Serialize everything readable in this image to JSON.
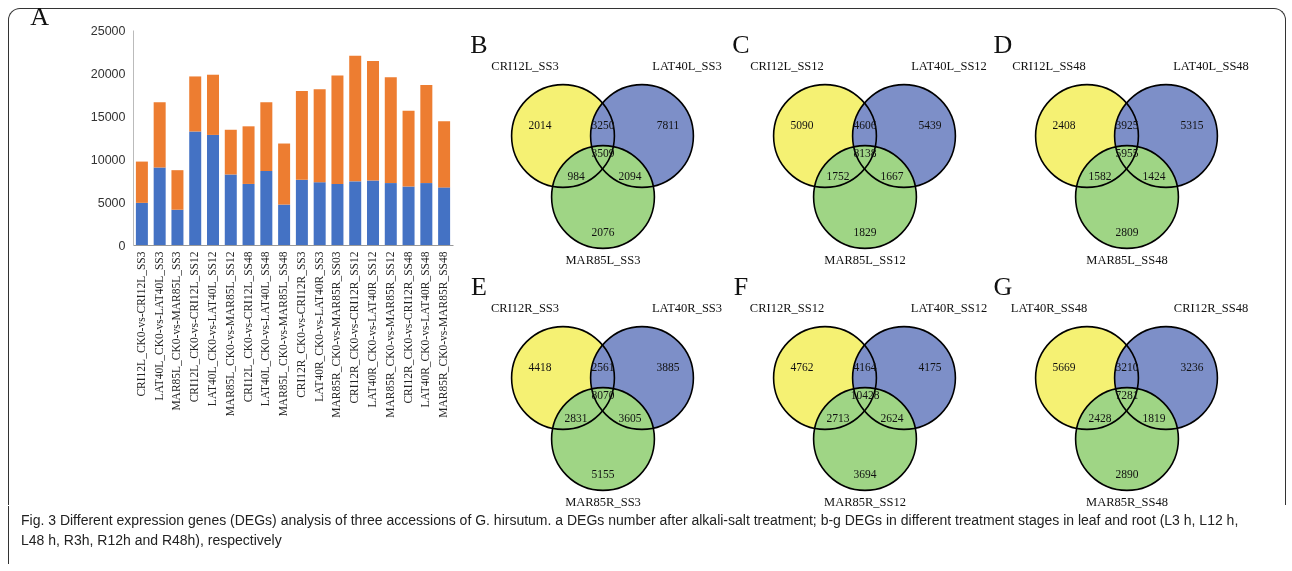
{
  "chart_data": [
    {
      "type": "bar",
      "title": "A",
      "stacked": true,
      "categories": [
        "CRI12L_CK0-vs-CRI12L_SS3",
        "LAT40L_CK0-vs-LAT40L_SS3",
        "MAR85L_CK0-vs-MAR85L_SS3",
        "CRI12L_CK0-vs-CRI12L_SS12",
        "LAT40L_CK0-vs-LAT40L_SS12",
        "MAR85L_CK0-vs-MAR85L_SS12",
        "CRI12L_CK0-vs-CRI12L_SS48",
        "LAT40L_CK0-vs-LAT40L_SS48",
        "MAR85L_CK0-vs-MAR85L_SS48",
        "CRI12R_CK0-vs-CRI12R_SS3",
        "LAT40R_CK0-vs-LAT40R_SS3",
        "MAR85R_CK0-vs-MAR85R_SS03",
        "CRI12R_CK0-vs-CRI12R_SS12",
        "LAT40R_CK0-vs-LAT40R_SS12",
        "MAR85R_CK0-vs-MAR85R_SS12",
        "CRI12R_CK0-vs-CRI12R_SS48",
        "LAT40R_CK0-vs-LAT40R_SS48",
        "MAR85R_CK0-vs-MAR85R_SS48"
      ],
      "series": [
        {
          "color": "#4472c4",
          "values": [
            4900,
            9000,
            4100,
            13200,
            12800,
            8200,
            7100,
            8600,
            4700,
            7600,
            7300,
            7100,
            7400,
            7500,
            7200,
            6800,
            7200,
            6700
          ]
        },
        {
          "color": "#ed7d31",
          "values": [
            4800,
            7600,
            4600,
            6400,
            7000,
            5200,
            6700,
            8000,
            7100,
            10300,
            10800,
            12600,
            14600,
            13900,
            12300,
            8800,
            11400,
            7700
          ]
        }
      ],
      "ylim": [
        0,
        25000
      ],
      "yticks": [
        0,
        5000,
        10000,
        15000,
        20000,
        25000
      ],
      "annotations": [
        "Fig. 3 Different expression genes (DEGs) analysis of three accessions of G. hirsutum. a DEGs number after alkali-salt treatment; b-g DEGs in different treatment stages in leaf and root (L3 h, L12 h, L48 h, R3h, R12h and R48h), respectively"
      ]
    },
    {
      "type": "other",
      "title": "B",
      "categories": [
        "CRI12L_SS3",
        "LAT40L_SS3",
        "MAR85L_SS3"
      ],
      "colors": [
        "#f5f173",
        "#7d8fc8",
        "#9fd585"
      ],
      "annotations": [
        "2014",
        "3250",
        "7811",
        "3509",
        "984",
        "2094",
        "2076"
      ]
    },
    {
      "type": "other",
      "title": "C",
      "categories": [
        "CRI12L_SS12",
        "LAT40L_SS12",
        "MAR85L_SS12"
      ],
      "colors": [
        "#f5f173",
        "#7d8fc8",
        "#9fd585"
      ],
      "annotations": [
        "5090",
        "4606",
        "5439",
        "8138",
        "1752",
        "1667",
        "1829"
      ]
    },
    {
      "type": "other",
      "title": "D",
      "categories": [
        "CRI12L_SS48",
        "LAT40L_SS48",
        "MAR85L_SS48"
      ],
      "colors": [
        "#f5f173",
        "#7d8fc8",
        "#9fd585"
      ],
      "annotations": [
        "2408",
        "3925",
        "5315",
        "5955",
        "1582",
        "1424",
        "2809"
      ]
    },
    {
      "type": "other",
      "title": "E",
      "categories": [
        "CRI12R_SS3",
        "LAT40R_SS3",
        "MAR85R_SS3"
      ],
      "colors": [
        "#f5f173",
        "#7d8fc8",
        "#9fd585"
      ],
      "annotations": [
        "4418",
        "2561",
        "3885",
        "8070",
        "2831",
        "3605",
        "5155"
      ]
    },
    {
      "type": "other",
      "title": "F",
      "categories": [
        "CRI12R_SS12",
        "LAT40R_SS12",
        "MAR85R_SS12"
      ],
      "colors": [
        "#f5f173",
        "#7d8fc8",
        "#9fd585"
      ],
      "annotations": [
        "4762",
        "4164",
        "4175",
        "10428",
        "2713",
        "2624",
        "3694"
      ]
    },
    {
      "type": "other",
      "title": "G",
      "categories": [
        "LAT40R_SS48",
        "CRI12R_SS48",
        "MAR85R_SS48"
      ],
      "colors": [
        "#f5f173",
        "#7d8fc8",
        "#9fd585"
      ],
      "annotations": [
        "5669",
        "3210",
        "3236",
        "7281",
        "2428",
        "1819",
        "2890"
      ]
    }
  ]
}
